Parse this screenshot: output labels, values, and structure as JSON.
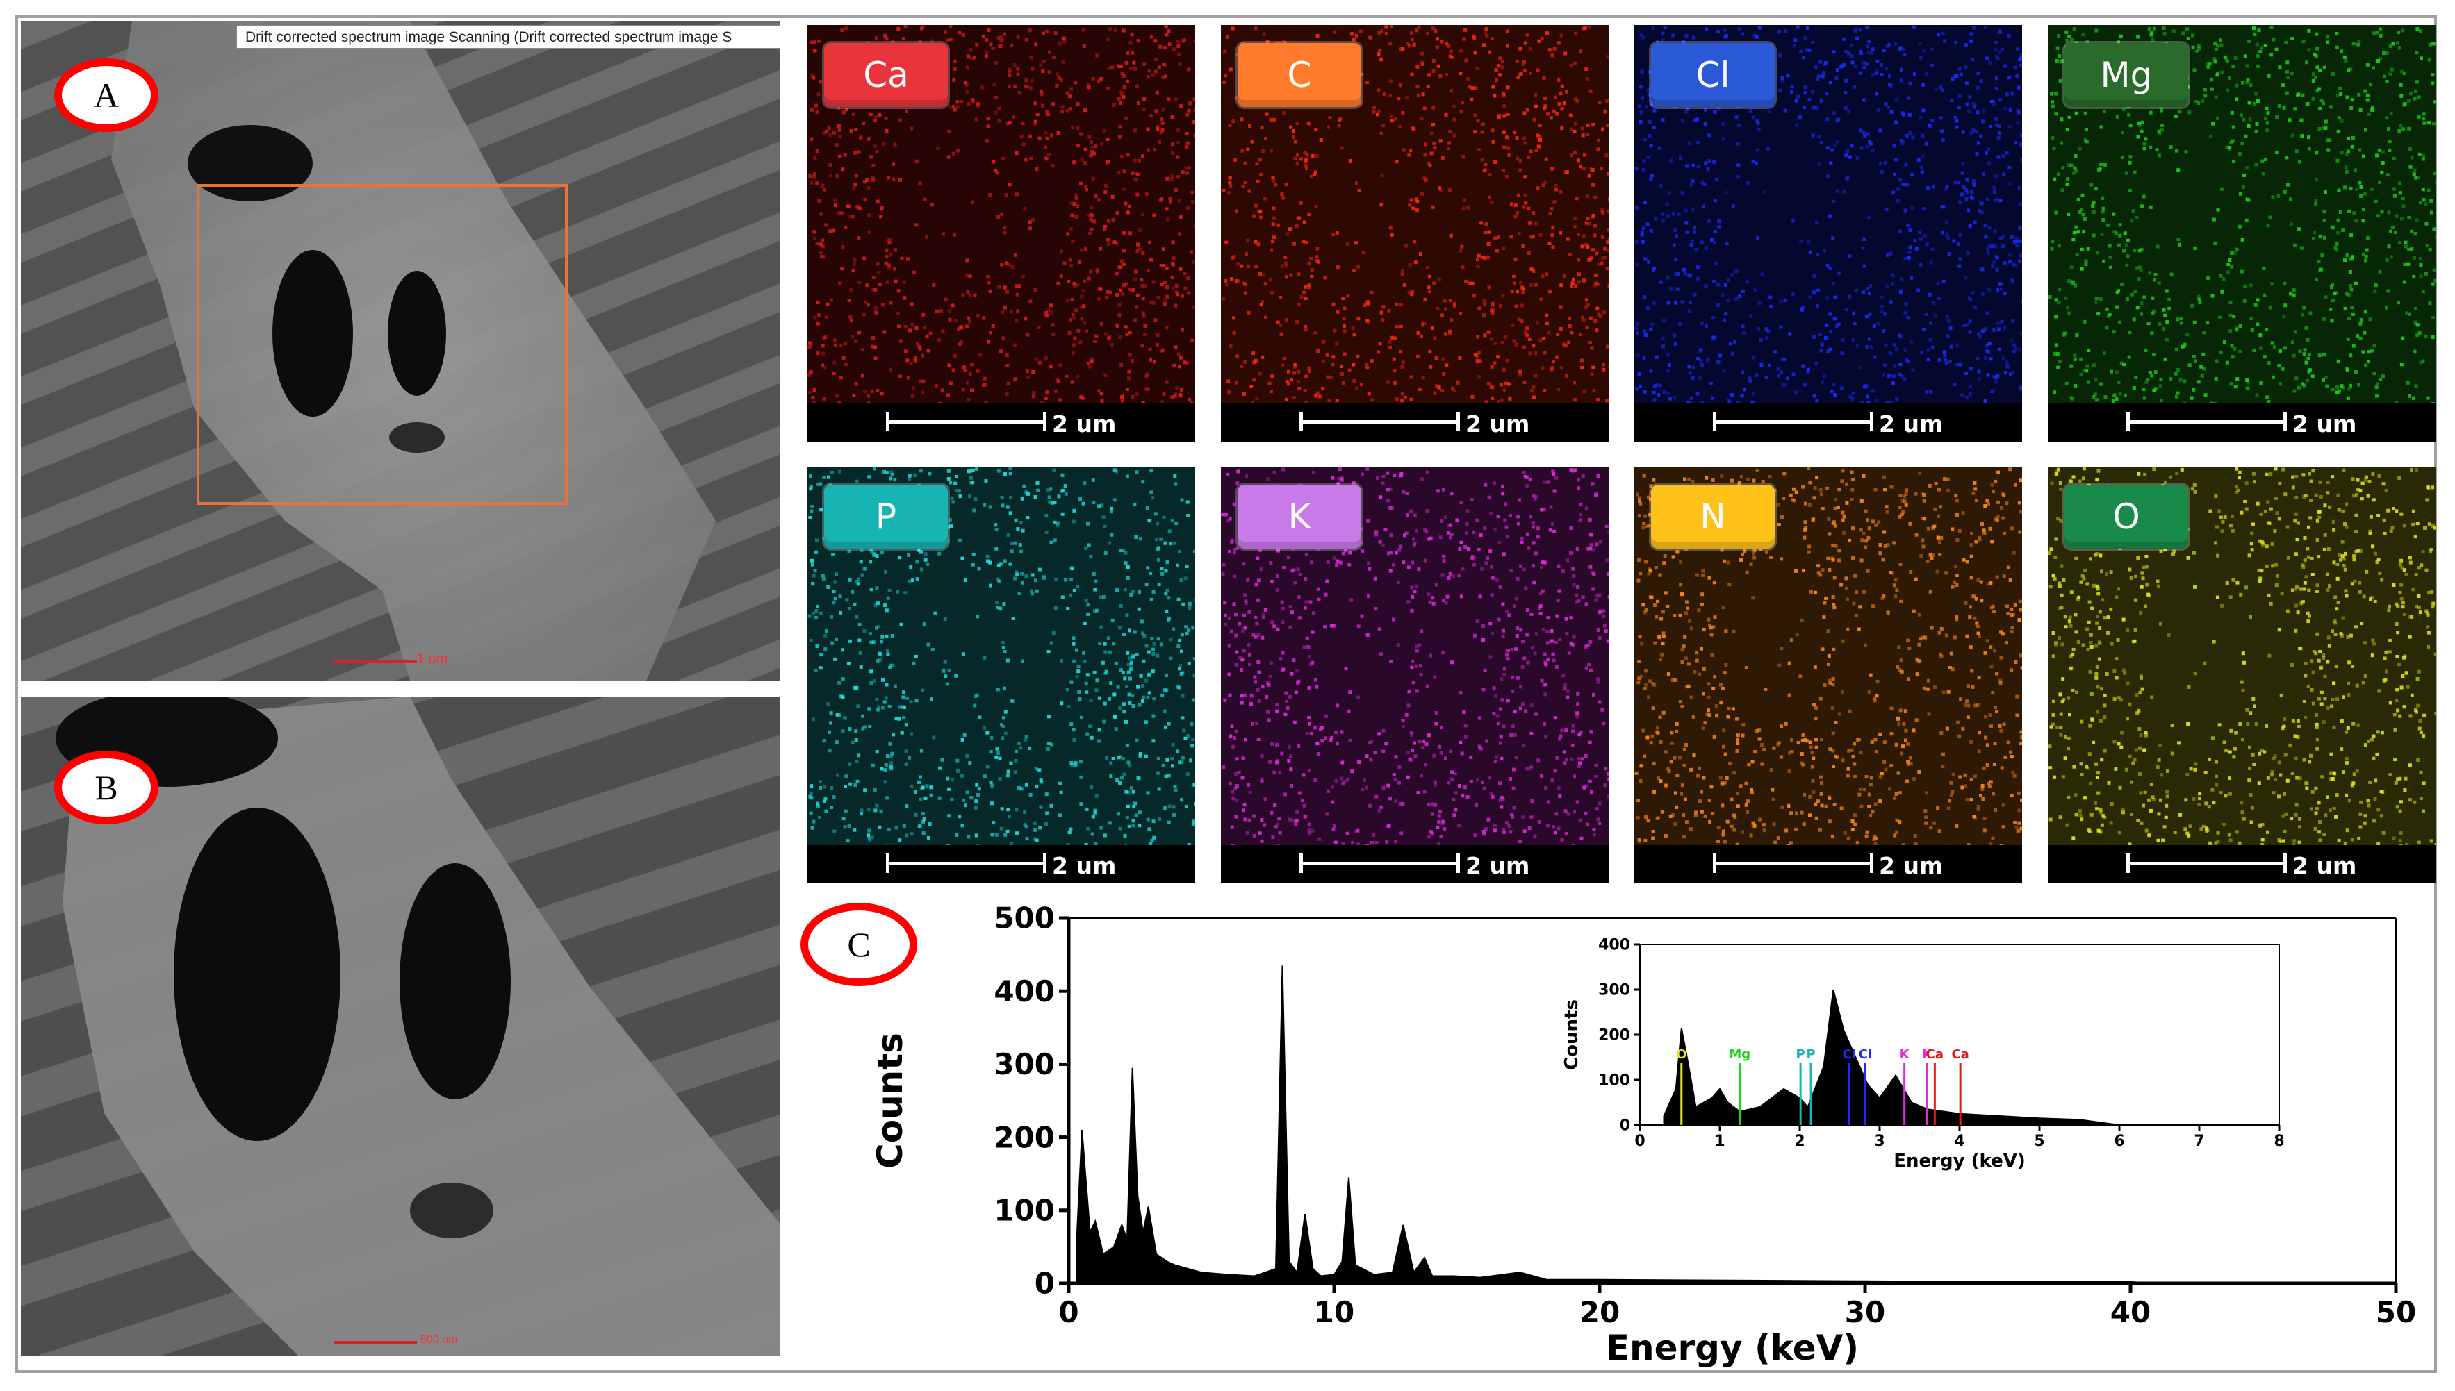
{
  "panels": {
    "a_label": "A",
    "b_label": "B",
    "c_label": "C",
    "sem_header": "Drift corrected spectrum image Scanning (Drift corrected spectrum image S",
    "sem_a_scale": "1 um",
    "sem_b_scale": "500 nm"
  },
  "maps": [
    {
      "element": "Ca",
      "scale": "2 um",
      "color": "#e01c1c",
      "badge": "#e8343a"
    },
    {
      "element": "C",
      "scale": "2 um",
      "color": "#ff2a10",
      "badge": "#ff7a2a"
    },
    {
      "element": "Cl",
      "scale": "2 um",
      "color": "#1a2cff",
      "badge": "#2a5ad8"
    },
    {
      "element": "Mg",
      "scale": "2 um",
      "color": "#1fd21f",
      "badge": "#2a6a2a"
    },
    {
      "element": "P",
      "scale": "2 um",
      "color": "#1fe0e0",
      "badge": "#18b4b4"
    },
    {
      "element": "K",
      "scale": "2 um",
      "color": "#e22ae2",
      "badge": "#c87ae8"
    },
    {
      "element": "N",
      "scale": "2 um",
      "color": "#ff8a1a",
      "badge": "#ffc21a"
    },
    {
      "element": "O",
      "scale": "2 um",
      "color": "#e6e61a",
      "badge": "#1a8a4a"
    }
  ],
  "chart_data": [
    {
      "type": "line",
      "xlabel": "Energy (keV)",
      "ylabel": "Counts",
      "xlim": [
        0,
        50
      ],
      "ylim": [
        0,
        500
      ],
      "xticks": [
        0,
        10,
        20,
        30,
        40,
        50
      ],
      "yticks": [
        0,
        100,
        200,
        300,
        400,
        500
      ],
      "series": [
        {
          "x": [
            0.3,
            0.5,
            0.8,
            1.0,
            1.3,
            1.7,
            2.0,
            2.2,
            2.4,
            2.6,
            2.8,
            3.0,
            3.3,
            3.7,
            4.0,
            5.0,
            6.0,
            7.0,
            7.8,
            8.05,
            8.3,
            8.6,
            8.9,
            9.2,
            9.5,
            10.0,
            10.3,
            10.55,
            10.8,
            11.5,
            12.2,
            12.6,
            13.0,
            13.4,
            13.7,
            14.5,
            15.5,
            17.0,
            18.0,
            20.0,
            25.0,
            30.0,
            35.0,
            40.0,
            40.4,
            41.0
          ],
          "y": [
            60,
            210,
            70,
            85,
            40,
            50,
            80,
            60,
            295,
            120,
            70,
            105,
            40,
            30,
            25,
            15,
            12,
            10,
            20,
            435,
            30,
            15,
            95,
            20,
            10,
            12,
            30,
            145,
            25,
            12,
            15,
            80,
            15,
            35,
            10,
            10,
            8,
            15,
            5,
            5,
            4,
            3,
            2,
            2,
            1,
            0
          ]
        }
      ]
    },
    {
      "type": "line",
      "xlabel": "Energy (keV)",
      "ylabel": "Counts",
      "xlim": [
        0,
        8
      ],
      "ylim": [
        0,
        400
      ],
      "xticks": [
        0,
        1,
        2,
        3,
        4,
        5,
        6,
        7,
        8
      ],
      "yticks": [
        0,
        100,
        200,
        300,
        400
      ],
      "series": [
        {
          "x": [
            0.3,
            0.45,
            0.52,
            0.6,
            0.7,
            0.9,
            1.0,
            1.1,
            1.25,
            1.5,
            1.8,
            2.0,
            2.1,
            2.3,
            2.42,
            2.55,
            2.7,
            2.85,
            3.0,
            3.2,
            3.4,
            3.6,
            3.8,
            4.0,
            4.5,
            5.0,
            5.5,
            6.0
          ],
          "y": [
            20,
            80,
            215,
            140,
            40,
            60,
            80,
            50,
            30,
            40,
            80,
            60,
            40,
            130,
            300,
            210,
            150,
            90,
            60,
            110,
            50,
            35,
            30,
            25,
            20,
            15,
            12,
            0
          ]
        }
      ],
      "annotations": [
        {
          "text": "O",
          "x": 0.52,
          "color": "#e6e61a"
        },
        {
          "text": "Mg",
          "x": 1.25,
          "color": "#1fd21f"
        },
        {
          "text": "P",
          "x": 2.01,
          "color": "#18b4b4"
        },
        {
          "text": "P",
          "x": 2.14,
          "color": "#18b4b4"
        },
        {
          "text": "Cl",
          "x": 2.62,
          "color": "#1a2cff"
        },
        {
          "text": "Cl",
          "x": 2.82,
          "color": "#1a2cff"
        },
        {
          "text": "K",
          "x": 3.31,
          "color": "#e22ae2"
        },
        {
          "text": "K",
          "x": 3.59,
          "color": "#e22ae2"
        },
        {
          "text": "Ca",
          "x": 3.69,
          "color": "#e01c1c"
        },
        {
          "text": "Ca",
          "x": 4.01,
          "color": "#e01c1c"
        }
      ]
    }
  ]
}
